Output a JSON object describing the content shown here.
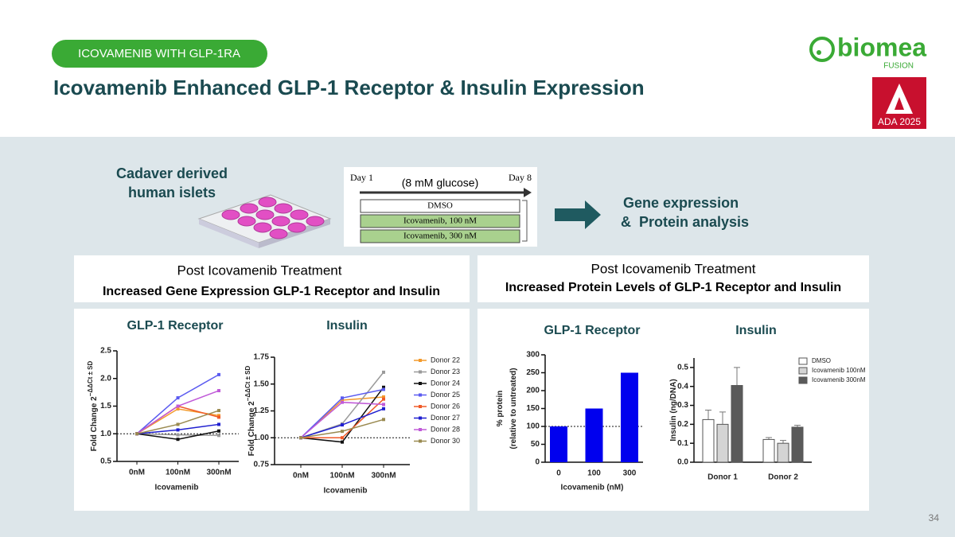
{
  "header": {
    "badge": "ICOVAMENIB WITH GLP-1RA",
    "title": "Icovamenib Enhanced GLP-1 Receptor & Insulin Expression",
    "logo": "biomea",
    "logo_sub": "FUSION",
    "ada": "ADA 2025"
  },
  "design": {
    "source": [
      "Cadaver derived",
      "human islets"
    ],
    "day_start": "Day 1",
    "day_end": "Day 8",
    "condition": "(8 mM glucose)",
    "arms": [
      "DMSO",
      "Icovamenib, 100 nM",
      "Icovamenib, 300 nM"
    ],
    "outcome": [
      "Gene expression",
      "&  Protein analysis"
    ]
  },
  "panels": [
    {
      "subtitle": "Post Icovamenib Treatment",
      "heading": "Increased Gene Expression GLP-1 Receptor and Insulin"
    },
    {
      "subtitle": "Post Icovamenib Treatment",
      "heading": "Increased Protein Levels of GLP-1 Receptor and Insulin"
    }
  ],
  "charts": [
    {
      "type": "line",
      "title": "GLP-1 Receptor",
      "categories": [
        "0nM",
        "100nM",
        "300nM"
      ],
      "x_label": "Icovamenib",
      "y_label": [
        "Fold Change 2",
        "−ΔΔCt ± SD"
      ],
      "ylim": [
        0.5,
        2.5
      ],
      "yticks": [
        0.5,
        {
          "value": 1,
          "label": "1.0"
        },
        1.5,
        {
          "value": 2,
          "label": "2.0"
        },
        2.5
      ],
      "reference_line": 1,
      "series": [
        {
          "name": "Donor 22",
          "color": "#f39a2b",
          "values": [
            1,
            1.45,
            1.33
          ]
        },
        {
          "name": "Donor 23",
          "color": "#9a9a9a",
          "values": [
            1,
            0.98,
            0.97
          ]
        },
        {
          "name": "Donor 24",
          "color": "#111111",
          "values": [
            1,
            0.9,
            1.05
          ]
        },
        {
          "name": "Donor 25",
          "color": "#5b5bf0",
          "values": [
            1,
            1.65,
            2.07
          ]
        },
        {
          "name": "Donor 26",
          "color": "#f05a28",
          "values": [
            1,
            1.5,
            1.3
          ]
        },
        {
          "name": "Donor 27",
          "color": "#1f1fd0",
          "values": [
            1,
            1.07,
            1.17
          ]
        },
        {
          "name": "Donor 28",
          "color": "#c05ad8",
          "values": [
            1,
            1.5,
            1.78
          ]
        },
        {
          "name": "Donor 30",
          "color": "#9a8a50",
          "values": [
            1,
            1.17,
            1.42
          ]
        }
      ]
    },
    {
      "type": "line",
      "title": "Insulin",
      "categories": [
        "0nM",
        "100nM",
        "300nM"
      ],
      "x_label": "Icovamenib",
      "y_label": [
        "Fold Change 2",
        "−ΔΔCt ± SD"
      ],
      "ylim": [
        0.75,
        1.75
      ],
      "yticks": [
        0.75,
        {
          "value": 1,
          "label": "1.00"
        },
        1.25,
        {
          "value": 1.5,
          "label": "1.50"
        },
        1.75
      ],
      "reference_line": 1,
      "legend": true,
      "series": [
        {
          "name": "Donor 22",
          "color": "#f39a2b",
          "values": [
            1,
            1.35,
            1.38
          ]
        },
        {
          "name": "Donor 23",
          "color": "#9a9a9a",
          "values": [
            1,
            1.13,
            1.61
          ]
        },
        {
          "name": "Donor 24",
          "color": "#111111",
          "values": [
            1,
            0.96,
            1.47
          ]
        },
        {
          "name": "Donor 25",
          "color": "#5b5bf0",
          "values": [
            1,
            1.37,
            1.45
          ]
        },
        {
          "name": "Donor 26",
          "color": "#f05a28",
          "values": [
            1,
            1.0,
            1.36
          ]
        },
        {
          "name": "Donor 27",
          "color": "#1f1fd0",
          "values": [
            1,
            1.12,
            1.27
          ]
        },
        {
          "name": "Donor 28",
          "color": "#c05ad8",
          "values": [
            1,
            1.33,
            1.31
          ]
        },
        {
          "name": "Donor 30",
          "color": "#9a8a50",
          "values": [
            1,
            1.06,
            1.17
          ]
        }
      ]
    },
    {
      "type": "bar",
      "title": "GLP-1 Receptor",
      "categories": [
        "0",
        "100",
        "300"
      ],
      "values": [
        100,
        150,
        250
      ],
      "color": "#0000ee",
      "x_label": "Icovamenib (nM)",
      "y_label": [
        "% protein",
        "(relative to untreated)"
      ],
      "ylim": [
        0,
        300
      ],
      "yticks": [
        0,
        50,
        100,
        150,
        200,
        250,
        300
      ],
      "reference_line": 100
    },
    {
      "type": "grouped_bar",
      "title": "Insulin",
      "categories": [
        "Donor 1",
        "Donor 2"
      ],
      "y_label": [
        "Insulin (ng/DNA)"
      ],
      "ylim": [
        0,
        0.55
      ],
      "yticks": [
        {
          "value": 0,
          "label": "0.0"
        },
        0.1,
        0.2,
        0.3,
        0.4,
        0.5
      ],
      "legend": true,
      "series": [
        {
          "name": "DMSO",
          "color": "#ffffff",
          "values": [
            0.225,
            0.12
          ],
          "errors": [
            0.05,
            0.01
          ]
        },
        {
          "name": "Icovamenib 100nM",
          "color": "#d4d4d4",
          "values": [
            0.2,
            0.1
          ],
          "errors": [
            0.065,
            0.015
          ]
        },
        {
          "name": "Icovamenib 300nM",
          "color": "#5a5a5a",
          "values": [
            0.405,
            0.185
          ],
          "errors": [
            0.095,
            0.01
          ]
        }
      ]
    }
  ],
  "page_number": "34"
}
